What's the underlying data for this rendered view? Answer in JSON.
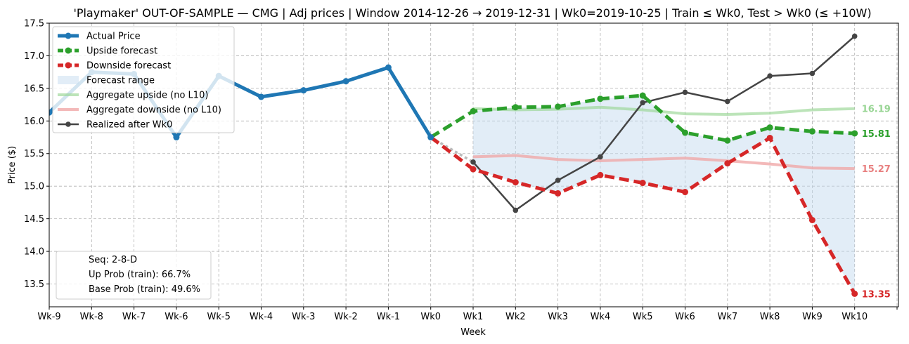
{
  "chart_data": {
    "type": "line",
    "title": "'Playmaker' OUT-OF-SAMPLE — CMG  |  Adj prices  |  Window 2014-12-26 → 2019-12-31  |  Wk0=2019-10-25  |  Train ≤ Wk0, Test > Wk0 (≤ +10W)",
    "xlabel": "Week",
    "ylabel": "Price ($)",
    "ylim": [
      13.15,
      17.5
    ],
    "yticks": [
      "13.5",
      "14.0",
      "14.5",
      "15.0",
      "15.5",
      "16.0",
      "16.5",
      "17.0",
      "17.5"
    ],
    "grid": true,
    "legend_position": "top-left",
    "categories": [
      "Wk-9",
      "Wk-8",
      "Wk-7",
      "Wk-6",
      "Wk-5",
      "Wk-4",
      "Wk-3",
      "Wk-2",
      "Wk-1",
      "Wk0",
      "Wk1",
      "Wk2",
      "Wk3",
      "Wk4",
      "Wk5",
      "Wk6",
      "Wk7",
      "Wk8",
      "Wk9",
      "Wk10"
    ],
    "series": [
      {
        "name": "Actual Price",
        "color": "#1f77b4",
        "x": [
          "Wk-9",
          "Wk-8",
          "Wk-7",
          "Wk-6",
          "Wk-5",
          "Wk-4",
          "Wk-3",
          "Wk-2",
          "Wk-1",
          "Wk0"
        ],
        "values": [
          16.13,
          16.75,
          16.72,
          15.75,
          16.69,
          16.37,
          16.47,
          16.61,
          16.82,
          15.75
        ]
      },
      {
        "name": "Upside forecast",
        "color": "#2ca02c",
        "x": [
          "Wk0",
          "Wk1",
          "Wk2",
          "Wk3",
          "Wk4",
          "Wk5",
          "Wk6",
          "Wk7",
          "Wk8",
          "Wk9",
          "Wk10"
        ],
        "values": [
          15.75,
          16.15,
          16.21,
          16.22,
          16.34,
          16.39,
          15.82,
          15.7,
          15.9,
          15.84,
          15.81
        ]
      },
      {
        "name": "Downside forecast",
        "color": "#d62728",
        "x": [
          "Wk0",
          "Wk1",
          "Wk2",
          "Wk3",
          "Wk4",
          "Wk5",
          "Wk6",
          "Wk7",
          "Wk8",
          "Wk9",
          "Wk10"
        ],
        "values": [
          15.75,
          15.26,
          15.06,
          14.89,
          15.17,
          15.05,
          14.91,
          15.35,
          15.74,
          14.48,
          13.35
        ]
      },
      {
        "name": "Forecast range",
        "color": "#c6dbef"
      },
      {
        "name": "Aggregate upside (no L10)",
        "color": "#98d594",
        "x": [
          "Wk1",
          "Wk2",
          "Wk3",
          "Wk4",
          "Wk5",
          "Wk6",
          "Wk7",
          "Wk8",
          "Wk9",
          "Wk10"
        ],
        "values": [
          16.19,
          16.17,
          16.18,
          16.21,
          16.17,
          16.11,
          16.1,
          16.12,
          16.17,
          16.19
        ]
      },
      {
        "name": "Aggregate downside (no L10)",
        "color": "#f0a8a8",
        "x": [
          "Wk1",
          "Wk2",
          "Wk3",
          "Wk4",
          "Wk5",
          "Wk6",
          "Wk7",
          "Wk8",
          "Wk9",
          "Wk10"
        ],
        "values": [
          15.45,
          15.47,
          15.41,
          15.39,
          15.41,
          15.43,
          15.39,
          15.34,
          15.28,
          15.27
        ]
      },
      {
        "name": "Realized after Wk0",
        "color": "#444444",
        "x": [
          "Wk1",
          "Wk2",
          "Wk3",
          "Wk4",
          "Wk5",
          "Wk6",
          "Wk7",
          "Wk8",
          "Wk9",
          "Wk10"
        ],
        "values": [
          15.37,
          14.63,
          15.09,
          15.45,
          16.28,
          16.44,
          16.3,
          16.69,
          16.73,
          17.3
        ]
      }
    ],
    "end_labels": [
      {
        "text": "16.19",
        "value": 16.19,
        "color": "#98d594"
      },
      {
        "text": "15.81",
        "value": 15.81,
        "color": "#2ca02c"
      },
      {
        "text": "15.27",
        "value": 15.27,
        "color": "#e88080"
      },
      {
        "text": "13.35",
        "value": 13.35,
        "color": "#d62728"
      }
    ],
    "info_box": [
      "Seq: 2-8-D",
      "Up Prob (train): 66.7%",
      "Base Prob (train): 49.6%"
    ]
  }
}
